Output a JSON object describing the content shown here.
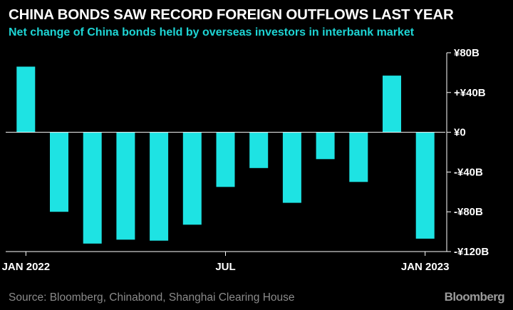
{
  "chart_data": {
    "type": "bar",
    "title": "CHINA BONDS SAW RECORD FOREIGN OUTFLOWS LAST YEAR",
    "subtitle": "Net change of China bonds held by overseas investors in interbank market",
    "categories": [
      "Jan 2022",
      "Feb 2022",
      "Mar 2022",
      "Apr 2022",
      "May 2022",
      "Jun 2022",
      "Jul 2022",
      "Aug 2022",
      "Sep 2022",
      "Oct 2022",
      "Nov 2022",
      "Dec 2022",
      "Jan 2023"
    ],
    "values": [
      66,
      -80,
      -112,
      -108,
      -109,
      -93,
      -55,
      -36,
      -71,
      -27,
      -50,
      57,
      -107
    ],
    "unit": "billion yuan",
    "ylim": [
      -120,
      80
    ],
    "y_ticks": [
      80,
      40,
      0,
      -40,
      -80,
      -120
    ],
    "y_tick_labels": [
      "¥80B",
      "+¥40B",
      "¥0",
      "-¥40B",
      "-¥80B",
      "-¥120B"
    ],
    "x_tick_labels": [
      {
        "index": 0,
        "label": "JAN 2022"
      },
      {
        "index": 6,
        "label": "JUL"
      },
      {
        "index": 12,
        "label": "JAN 2023"
      }
    ],
    "xlabel": "",
    "ylabel": "",
    "bar_color": "#1ee3e3",
    "axis_color": "#ffffff",
    "background": "#000000",
    "grid": false
  },
  "footer": {
    "source": "Source: Bloomberg, Chinabond, Shanghai Clearing House",
    "brand": "Bloomberg"
  }
}
